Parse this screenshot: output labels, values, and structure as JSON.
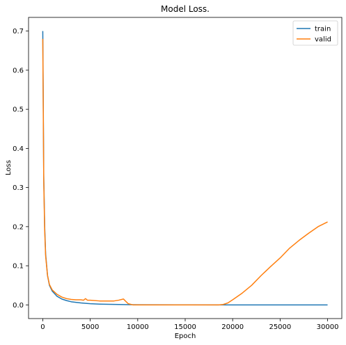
{
  "chart_data": {
    "type": "line",
    "title": "Model Loss.",
    "xlabel": "Epoch",
    "ylabel": "Loss",
    "xlim": [
      -1500,
      31500
    ],
    "ylim": [
      -0.035,
      0.735
    ],
    "xticks": [
      0,
      5000,
      10000,
      15000,
      20000,
      25000,
      30000
    ],
    "yticks": [
      0.0,
      0.1,
      0.2,
      0.3,
      0.4,
      0.5,
      0.6,
      0.7
    ],
    "xtick_labels": [
      "0",
      "5000",
      "10000",
      "15000",
      "20000",
      "25000",
      "30000"
    ],
    "ytick_labels": [
      "0.0",
      "0.1",
      "0.2",
      "0.3",
      "0.4",
      "0.5",
      "0.6",
      "0.7"
    ],
    "grid": false,
    "legend_position": "top-right",
    "series": [
      {
        "name": "train",
        "color": "#1f77b4",
        "points": [
          [
            0,
            0.7
          ],
          [
            50,
            0.52
          ],
          [
            100,
            0.33
          ],
          [
            200,
            0.2
          ],
          [
            300,
            0.13
          ],
          [
            500,
            0.075
          ],
          [
            700,
            0.05
          ],
          [
            1000,
            0.035
          ],
          [
            1500,
            0.022
          ],
          [
            2000,
            0.015
          ],
          [
            2500,
            0.011
          ],
          [
            3000,
            0.008
          ],
          [
            4000,
            0.005
          ],
          [
            5000,
            0.003
          ],
          [
            6000,
            0.002
          ],
          [
            7000,
            0.0015
          ],
          [
            8000,
            0.001
          ],
          [
            9000,
            0.0006
          ],
          [
            10000,
            0.0003
          ],
          [
            15000,
            0.0001
          ],
          [
            20000,
            0.0
          ],
          [
            25000,
            0.0
          ],
          [
            30000,
            0.0
          ]
        ]
      },
      {
        "name": "valid",
        "color": "#ff7f0e",
        "points": [
          [
            0,
            0.68
          ],
          [
            50,
            0.5
          ],
          [
            100,
            0.32
          ],
          [
            200,
            0.19
          ],
          [
            300,
            0.125
          ],
          [
            500,
            0.075
          ],
          [
            700,
            0.052
          ],
          [
            1000,
            0.038
          ],
          [
            1500,
            0.027
          ],
          [
            2000,
            0.02
          ],
          [
            2500,
            0.016
          ],
          [
            3000,
            0.014
          ],
          [
            3500,
            0.013
          ],
          [
            4000,
            0.013
          ],
          [
            4300,
            0.012
          ],
          [
            4500,
            0.016
          ],
          [
            4700,
            0.012
          ],
          [
            5000,
            0.012
          ],
          [
            6000,
            0.01
          ],
          [
            7000,
            0.01
          ],
          [
            7500,
            0.01
          ],
          [
            8000,
            0.012
          ],
          [
            8500,
            0.015
          ],
          [
            8700,
            0.01
          ],
          [
            9000,
            0.003
          ],
          [
            9500,
            0.0
          ],
          [
            10000,
            0.0
          ],
          [
            15000,
            0.0
          ],
          [
            18500,
            0.0
          ],
          [
            19000,
            0.001
          ],
          [
            19500,
            0.005
          ],
          [
            20000,
            0.013
          ],
          [
            21000,
            0.03
          ],
          [
            22000,
            0.05
          ],
          [
            23000,
            0.075
          ],
          [
            24000,
            0.098
          ],
          [
            25000,
            0.12
          ],
          [
            26000,
            0.145
          ],
          [
            27000,
            0.165
          ],
          [
            28000,
            0.183
          ],
          [
            29000,
            0.2
          ],
          [
            30000,
            0.212
          ]
        ]
      }
    ]
  }
}
